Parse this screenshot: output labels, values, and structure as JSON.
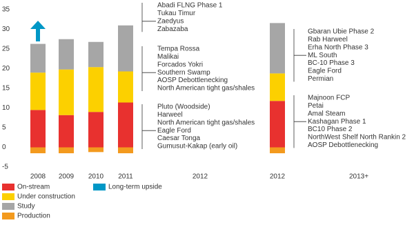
{
  "chart_data": {
    "type": "stacked_bar",
    "categories": [
      "2008",
      "2009",
      "2010",
      "2011",
      "2012",
      "2012",
      "2013+"
    ],
    "series": [
      {
        "name": "On-stream",
        "color": "#e8312f",
        "values": [
          9.5,
          8.2,
          9,
          11.4,
          null,
          11.8,
          null
        ]
      },
      {
        "name": "Under construction",
        "color": "#fcd000",
        "values": [
          9.5,
          11.6,
          11.4,
          7.9,
          null,
          7,
          null
        ]
      },
      {
        "name": "Study",
        "color": "#a6a6a6",
        "values": [
          7.3,
          7.7,
          6.4,
          11.7,
          null,
          12.8,
          null
        ]
      },
      {
        "name": "Production",
        "color": "#f39a1e",
        "values": [
          -1.5,
          -1.5,
          -1.2,
          -1.5,
          null,
          -1.5,
          null
        ]
      }
    ],
    "upside": {
      "name": "Long-term upside",
      "color": "#0097c6"
    },
    "ylim": [
      -5,
      35
    ],
    "yticks": [
      -5,
      0,
      5,
      10,
      15,
      20,
      25,
      30,
      35
    ],
    "annotations_left": [
      [
        "Abadi FLNG Phase 1",
        "Tukau Timur",
        "Zaedyus",
        "Zabazaba"
      ],
      [
        "Tempa Rossa",
        "Malikai",
        "Forcados Yokri",
        "Southern Swamp",
        "AOSP Debottlenecking",
        "North American tight gas/shales"
      ],
      [
        "Pluto (Woodside)",
        "Harweel",
        "North American tight gas/shales",
        "Eagle Ford",
        "Caesar Tonga",
        "Gumusut-Kakap (early oil)"
      ]
    ],
    "annotations_right": [
      [
        "Gbaran Ubie Phase 2",
        "Rab Harweel",
        "Erha North Phase 3",
        "ML South",
        "BC-10 Phase 3",
        "Eagle Ford",
        "Permian"
      ],
      [
        "Majnoon FCP",
        "Petai",
        "Amal Steam",
        "Kashagan Phase 1",
        "BC10 Phase 2",
        "NorthWest Shelf North Rankin 2",
        "AOSP Debottlenecking"
      ]
    ]
  }
}
